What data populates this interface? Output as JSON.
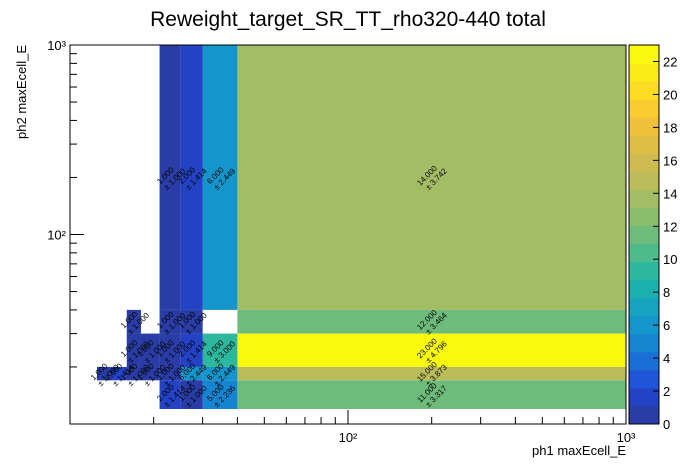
{
  "chart_data": {
    "type": "heatmap",
    "title": "Reweight_target_SR_TT_rho320-440 total",
    "xlabel": "ph1 maxEcell_E",
    "ylabel": "ph2 maxEcell_E",
    "xscale": "log",
    "yscale": "log",
    "xlim": [
      10,
      1000
    ],
    "ylim": [
      10,
      1000
    ],
    "x_ticks": [
      {
        "value": 100,
        "label": "10²"
      },
      {
        "value": 1000,
        "label": "10³"
      }
    ],
    "y_ticks": [
      {
        "value": 100,
        "label": "10²"
      },
      {
        "value": 1000,
        "label": "10³"
      }
    ],
    "colorbar": {
      "min": 0,
      "max": 23,
      "ticks": [
        "0",
        "2",
        "4",
        "6",
        "8",
        "10",
        "12",
        "14",
        "16",
        "18",
        "20",
        "22"
      ],
      "colors": [
        "#2a3ca6",
        "#2342c5",
        "#1f55d8",
        "#1a6fd4",
        "#1585d2",
        "#1496cc",
        "#15a3bf",
        "#1ab0ae",
        "#2cb79e",
        "#4fba8b",
        "#6ebc7b",
        "#8bbd6f",
        "#a4bd64",
        "#bbbd5a",
        "#cfbc50",
        "#dfbd45",
        "#efc13a",
        "#f9cc2f",
        "#fbdc23",
        "#f9ec16",
        "#f9f90e"
      ]
    },
    "cells": [
      {
        "x0": 40,
        "x1": 1000,
        "y0": 40,
        "y1": 1000,
        "value": 14,
        "label": "14.000",
        "error": "± 3.742"
      },
      {
        "x0": 40,
        "x1": 1000,
        "y0": 30,
        "y1": 40,
        "value": 12,
        "label": "12.000",
        "error": "± 3.464"
      },
      {
        "x0": 40,
        "x1": 1000,
        "y0": 20,
        "y1": 30,
        "value": 23,
        "label": "23.000",
        "error": "± 4.796"
      },
      {
        "x0": 40,
        "x1": 1000,
        "y0": 17,
        "y1": 20,
        "value": 15,
        "label": "15.000",
        "error": "± 3.873"
      },
      {
        "x0": 40,
        "x1": 1000,
        "y0": 12,
        "y1": 17,
        "value": 11,
        "label": "11.000",
        "error": "± 3.317"
      },
      {
        "x0": 30,
        "x1": 40,
        "y0": 40,
        "y1": 1000,
        "value": 6,
        "label": "6.000",
        "error": "± 2.449"
      },
      {
        "x0": 30,
        "x1": 40,
        "y0": 20,
        "y1": 30,
        "value": 9,
        "label": "9.000",
        "error": "± 3.000"
      },
      {
        "x0": 30,
        "x1": 40,
        "y0": 17,
        "y1": 20,
        "value": 6,
        "label": "6.000",
        "error": "± 2.449"
      },
      {
        "x0": 30,
        "x1": 40,
        "y0": 12,
        "y1": 17,
        "value": 5,
        "label": "5.000",
        "error": "± 2.236"
      },
      {
        "x0": 25,
        "x1": 30,
        "y0": 40,
        "y1": 1000,
        "value": 2,
        "label": "2.000",
        "error": "± 1.414"
      },
      {
        "x0": 25,
        "x1": 30,
        "y0": 30,
        "y1": 40,
        "value": 1,
        "label": "1.000",
        "error": "± 1.000"
      },
      {
        "x0": 25,
        "x1": 30,
        "y0": 20,
        "y1": 30,
        "value": 2,
        "label": "2.000",
        "error": "± 1.414"
      },
      {
        "x0": 25,
        "x1": 30,
        "y0": 17,
        "y1": 20,
        "value": 6,
        "label": "6.000",
        "error": "± 2.449"
      },
      {
        "x0": 25,
        "x1": 30,
        "y0": 12,
        "y1": 17,
        "value": 1,
        "label": "1.000",
        "error": "± 1.000"
      },
      {
        "x0": 21,
        "x1": 25,
        "y0": 40,
        "y1": 1000,
        "value": 1,
        "label": "1.000",
        "error": "± 1.000"
      },
      {
        "x0": 21,
        "x1": 25,
        "y0": 30,
        "y1": 40,
        "value": 1,
        "label": "1.000",
        "error": "± 1.000"
      },
      {
        "x0": 21,
        "x1": 25,
        "y0": 20,
        "y1": 30,
        "value": 1,
        "label": "1.000",
        "error": "± 1.000"
      },
      {
        "x0": 21,
        "x1": 25,
        "y0": 17,
        "y1": 20,
        "value": 1,
        "label": "1.000",
        "error": "± 1.000"
      },
      {
        "x0": 21,
        "x1": 25,
        "y0": 12,
        "y1": 17,
        "value": 2,
        "label": "2.000",
        "error": "± 1.414"
      },
      {
        "x0": 18,
        "x1": 21,
        "y0": 20,
        "y1": 30,
        "value": 1,
        "label": "1.000",
        "error": "± 1.000"
      },
      {
        "x0": 18,
        "x1": 21,
        "y0": 17,
        "y1": 20,
        "value": 1,
        "label": "1.000",
        "error": "± 1.000"
      },
      {
        "x0": 16,
        "x1": 18,
        "y0": 30,
        "y1": 40,
        "value": 1,
        "label": "1.000",
        "error": "± 1.000"
      },
      {
        "x0": 16,
        "x1": 18,
        "y0": 20,
        "y1": 30,
        "value": 1,
        "label": "1.000",
        "error": "± 1.000"
      },
      {
        "x0": 16,
        "x1": 18,
        "y0": 17,
        "y1": 20,
        "value": 1,
        "label": "1.000",
        "error": "± 1.000"
      },
      {
        "x0": 14,
        "x1": 16,
        "y0": 17,
        "y1": 20,
        "value": 2,
        "label": "2.000",
        "error": "± 1.414"
      },
      {
        "x0": 12.5,
        "x1": 14,
        "y0": 17,
        "y1": 20,
        "value": 1,
        "label": "1.000",
        "error": "± 1.000"
      }
    ]
  }
}
